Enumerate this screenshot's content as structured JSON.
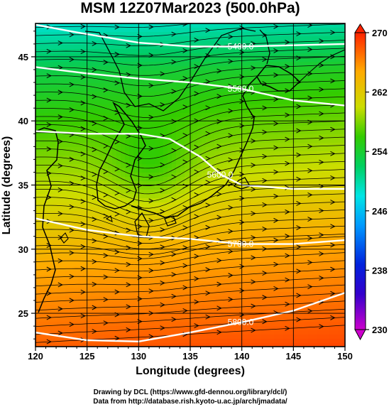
{
  "chart_data": {
    "type": "heatmap",
    "title": "MSM 12Z07Mar2023 (500.0hPa)",
    "xlabel": "Longitude (degrees)",
    "ylabel": "Latitude  (degrees)",
    "xlim": [
      120,
      150
    ],
    "ylim": [
      22.4,
      47.6
    ],
    "x_ticks": [
      120,
      125,
      130,
      135,
      140,
      145,
      150
    ],
    "y_ticks": [
      25,
      30,
      35,
      40,
      45
    ],
    "x_tick_labels": [
      "120",
      "125",
      "130",
      "135",
      "140",
      "145",
      "150"
    ],
    "y_tick_labels": [
      "25",
      "30",
      "35",
      "40",
      "45"
    ],
    "grid": true,
    "colorbar": {
      "range": [
        230,
        270
      ],
      "ticks": [
        230,
        238,
        246,
        254,
        262,
        270
      ],
      "tick_labels": [
        "230",
        "238",
        "246",
        "254",
        "262",
        "270"
      ],
      "position": "right",
      "colors": [
        "#cc00cc",
        "#0000cc",
        "#0099ff",
        "#00e5e5",
        "#00cc66",
        "#33cc00",
        "#ccdd00",
        "#ffaa00",
        "#ff6600",
        "#ff2200"
      ]
    },
    "contours": [
      {
        "label": "5400.0",
        "level": 5400,
        "points": [
          [
            120,
            47.5
          ],
          [
            124,
            46.9
          ],
          [
            130,
            46.1
          ],
          [
            135,
            45.8
          ],
          [
            140,
            45.8
          ],
          [
            145,
            45.9
          ],
          [
            150,
            46.0
          ]
        ]
      },
      {
        "label": "5500.0",
        "level": 5500,
        "points": [
          [
            120,
            44.2
          ],
          [
            125,
            43.7
          ],
          [
            130,
            43.3
          ],
          [
            135,
            43.0
          ],
          [
            140,
            42.5
          ],
          [
            145,
            41.6
          ],
          [
            150,
            41.2
          ]
        ]
      },
      {
        "label": "5600.0",
        "level": 5600,
        "points": [
          [
            120,
            39.2
          ],
          [
            125,
            39.0
          ],
          [
            130,
            39.0
          ],
          [
            133,
            38.6
          ],
          [
            136,
            37.2
          ],
          [
            138,
            35.8
          ],
          [
            140,
            35.0
          ],
          [
            145,
            34.7
          ],
          [
            150,
            34.7
          ]
        ]
      },
      {
        "label": "5700.0",
        "level": 5700,
        "points": [
          [
            120,
            32.4
          ],
          [
            125,
            31.5
          ],
          [
            130,
            31.0
          ],
          [
            135,
            30.8
          ],
          [
            140,
            30.4
          ],
          [
            145,
            30.4
          ],
          [
            150,
            30.7
          ]
        ]
      },
      {
        "label": "5800.0",
        "level": 5800,
        "points": [
          [
            120,
            23.5
          ],
          [
            125,
            22.9
          ],
          [
            130,
            22.8
          ],
          [
            135,
            23.5
          ],
          [
            140,
            24.3
          ],
          [
            145,
            25.2
          ],
          [
            150,
            26.6
          ]
        ]
      }
    ],
    "flow": "westerly streamlines with trough over Korea/Japan Sea"
  },
  "credits": {
    "line1": "Drawing by DCL (https://www.gfd-dennou.org/library/dcl/)",
    "line2": "Data from http://database.rish.kyoto-u.ac.jp/arch/jmadata/"
  }
}
